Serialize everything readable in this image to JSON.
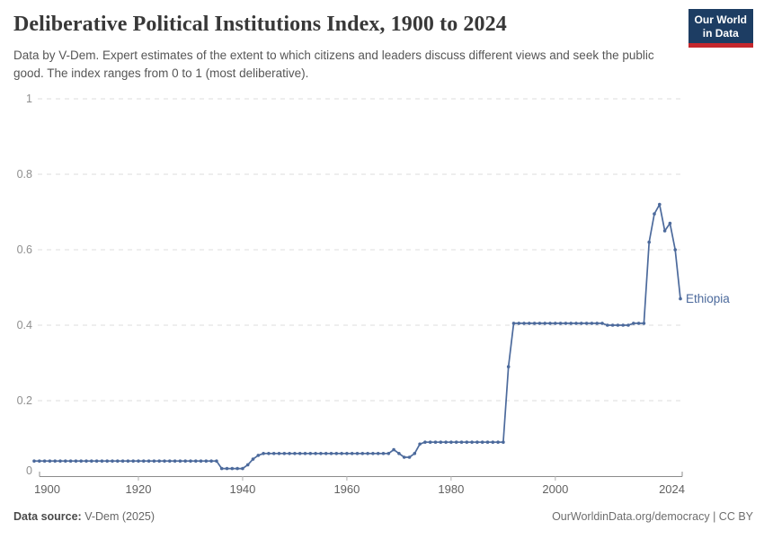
{
  "header": {
    "title": "Deliberative Political Institutions Index, 1900 to 2024",
    "subtitle": "Data by V-Dem. Expert estimates of the extent to which citizens and leaders discuss different views and seek the public good. The index ranges from 0 to 1 (most deliberative)."
  },
  "logo": {
    "line1": "Our World",
    "line2": "in Data",
    "bg_color": "#1d3d63",
    "stripe_color": "#c5272d"
  },
  "footer": {
    "source_label": "Data source:",
    "source_value": " V-Dem (2025)",
    "right": "OurWorldinData.org/democracy | CC BY"
  },
  "chart_data": {
    "type": "line",
    "title": "Deliberative Political Institutions Index, 1900 to 2024",
    "xlabel": "",
    "ylabel": "",
    "xlim": [
      1900,
      2024
    ],
    "ylim": [
      0,
      1
    ],
    "grid": true,
    "yticks": [
      0,
      0.2,
      0.4,
      0.6,
      0.8,
      1
    ],
    "ytick_labels": [
      "0",
      "0.2",
      "0.4",
      "0.6",
      "0.8",
      "1"
    ],
    "xticks": [
      1900,
      1920,
      1940,
      1960,
      1980,
      2000,
      2024
    ],
    "xtick_labels": [
      "1900",
      "1920",
      "1940",
      "1960",
      "1980",
      "2000",
      "2024"
    ],
    "line_color": "#4C6A9C",
    "grid_color": "#dcdcdc",
    "axis_color": "#8c8c8c",
    "series": [
      {
        "name": "Ethiopia",
        "label": "Ethiopia",
        "years": [
          1900,
          1901,
          1902,
          1903,
          1904,
          1905,
          1906,
          1907,
          1908,
          1909,
          1910,
          1911,
          1912,
          1913,
          1914,
          1915,
          1916,
          1917,
          1918,
          1919,
          1920,
          1921,
          1922,
          1923,
          1924,
          1925,
          1926,
          1927,
          1928,
          1929,
          1930,
          1931,
          1932,
          1933,
          1934,
          1935,
          1936,
          1937,
          1938,
          1939,
          1940,
          1941,
          1942,
          1943,
          1944,
          1945,
          1946,
          1947,
          1948,
          1949,
          1950,
          1951,
          1952,
          1953,
          1954,
          1955,
          1956,
          1957,
          1958,
          1959,
          1960,
          1961,
          1962,
          1963,
          1964,
          1965,
          1966,
          1967,
          1968,
          1969,
          1970,
          1971,
          1972,
          1973,
          1974,
          1975,
          1976,
          1977,
          1978,
          1979,
          1980,
          1981,
          1982,
          1983,
          1984,
          1985,
          1986,
          1987,
          1988,
          1989,
          1990,
          1991,
          1992,
          1993,
          1994,
          1995,
          1996,
          1997,
          1998,
          1999,
          2000,
          2001,
          2002,
          2003,
          2004,
          2005,
          2006,
          2007,
          2008,
          2009,
          2010,
          2011,
          2012,
          2013,
          2014,
          2015,
          2016,
          2017,
          2018,
          2019,
          2020,
          2021,
          2022,
          2023,
          2024
        ],
        "values": [
          0.04,
          0.04,
          0.04,
          0.04,
          0.04,
          0.04,
          0.04,
          0.04,
          0.04,
          0.04,
          0.04,
          0.04,
          0.04,
          0.04,
          0.04,
          0.04,
          0.04,
          0.04,
          0.04,
          0.04,
          0.04,
          0.04,
          0.04,
          0.04,
          0.04,
          0.04,
          0.04,
          0.04,
          0.04,
          0.04,
          0.04,
          0.04,
          0.04,
          0.04,
          0.04,
          0.04,
          0.02,
          0.02,
          0.02,
          0.02,
          0.02,
          0.03,
          0.045,
          0.055,
          0.06,
          0.06,
          0.06,
          0.06,
          0.06,
          0.06,
          0.06,
          0.06,
          0.06,
          0.06,
          0.06,
          0.06,
          0.06,
          0.06,
          0.06,
          0.06,
          0.06,
          0.06,
          0.06,
          0.06,
          0.06,
          0.06,
          0.06,
          0.06,
          0.06,
          0.07,
          0.06,
          0.05,
          0.05,
          0.06,
          0.085,
          0.09,
          0.09,
          0.09,
          0.09,
          0.09,
          0.09,
          0.09,
          0.09,
          0.09,
          0.09,
          0.09,
          0.09,
          0.09,
          0.09,
          0.09,
          0.09,
          0.29,
          0.405,
          0.405,
          0.405,
          0.405,
          0.405,
          0.405,
          0.405,
          0.405,
          0.405,
          0.405,
          0.405,
          0.405,
          0.405,
          0.405,
          0.405,
          0.405,
          0.405,
          0.405,
          0.4,
          0.4,
          0.4,
          0.4,
          0.4,
          0.405,
          0.405,
          0.405,
          0.62,
          0.695,
          0.72,
          0.65,
          0.67,
          0.6,
          0.47
        ]
      }
    ]
  }
}
